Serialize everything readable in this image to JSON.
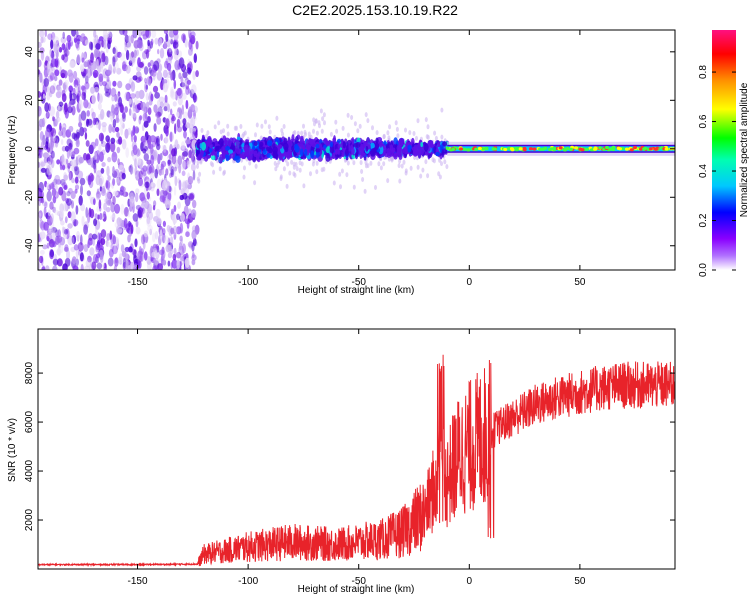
{
  "title": "C2E2.2025.153.10.19.R22",
  "colors": {
    "snr_line": "#e8232a",
    "spectro_low": "#d8c8f0",
    "spectro_mid": "#6a00e0",
    "spectro_ridge": "#e82020"
  },
  "chart_data": [
    {
      "type": "heatmap",
      "title": "C2E2.2025.153.10.19.R22",
      "xlabel": "Height of straight line (km)",
      "ylabel": "Frequency (Hz)",
      "xlim": [
        -195,
        93
      ],
      "ylim": [
        -50,
        49
      ],
      "xticks": [
        -150,
        -100,
        -50,
        0,
        50
      ],
      "yticks": [
        -40,
        -20,
        0,
        20,
        40
      ],
      "grid": false,
      "colorbar": {
        "label": "Normalized spectral amplitude",
        "range": [
          0.0,
          0.97
        ],
        "ticks": [
          "0.0",
          "0.2",
          "0.4",
          "0.6",
          "0.8"
        ],
        "colormap": [
          "#ffffff",
          "#8a00ff",
          "#0000ff",
          "#00c8ff",
          "#00ff00",
          "#ffff00",
          "#ff8000",
          "#ff0000",
          "#ff1080"
        ]
      },
      "features": [
        {
          "region": "noise",
          "x_range": [
            -195,
            -123
          ],
          "y_range": [
            -50,
            49
          ],
          "amplitude": 0.1
        },
        {
          "region": "signal onset",
          "x_range": [
            -123,
            -10
          ],
          "y_range": [
            -12,
            12
          ],
          "amplitude": 0.3
        },
        {
          "region": "carrier line",
          "x_range": [
            -10,
            93
          ],
          "frequency_hz": 0,
          "amplitude": 0.9
        }
      ]
    },
    {
      "type": "line",
      "xlabel": "Height of straight line (km)",
      "ylabel": "SNR (10 * v/v)",
      "xlim": [
        -195,
        93
      ],
      "ylim": [
        0,
        9800
      ],
      "xticks": [
        -150,
        -100,
        -50,
        0,
        50
      ],
      "yticks": [
        2000,
        4000,
        6000,
        8000
      ],
      "grid": false,
      "series": [
        {
          "x": [
            -195,
            -150,
            -123,
            -120,
            -100,
            -80,
            -60,
            -40,
            -30,
            -20,
            -15,
            -13,
            -10,
            -5,
            0,
            10,
            20,
            30,
            40,
            50,
            60,
            70,
            80,
            93
          ],
          "y": [
            180,
            180,
            200,
            600,
            900,
            1100,
            1000,
            1200,
            1500,
            2300,
            3500,
            4300,
            3600,
            4600,
            5000,
            5600,
            6200,
            6700,
            7000,
            7200,
            7400,
            7500,
            7500,
            7500
          ]
        }
      ]
    }
  ]
}
